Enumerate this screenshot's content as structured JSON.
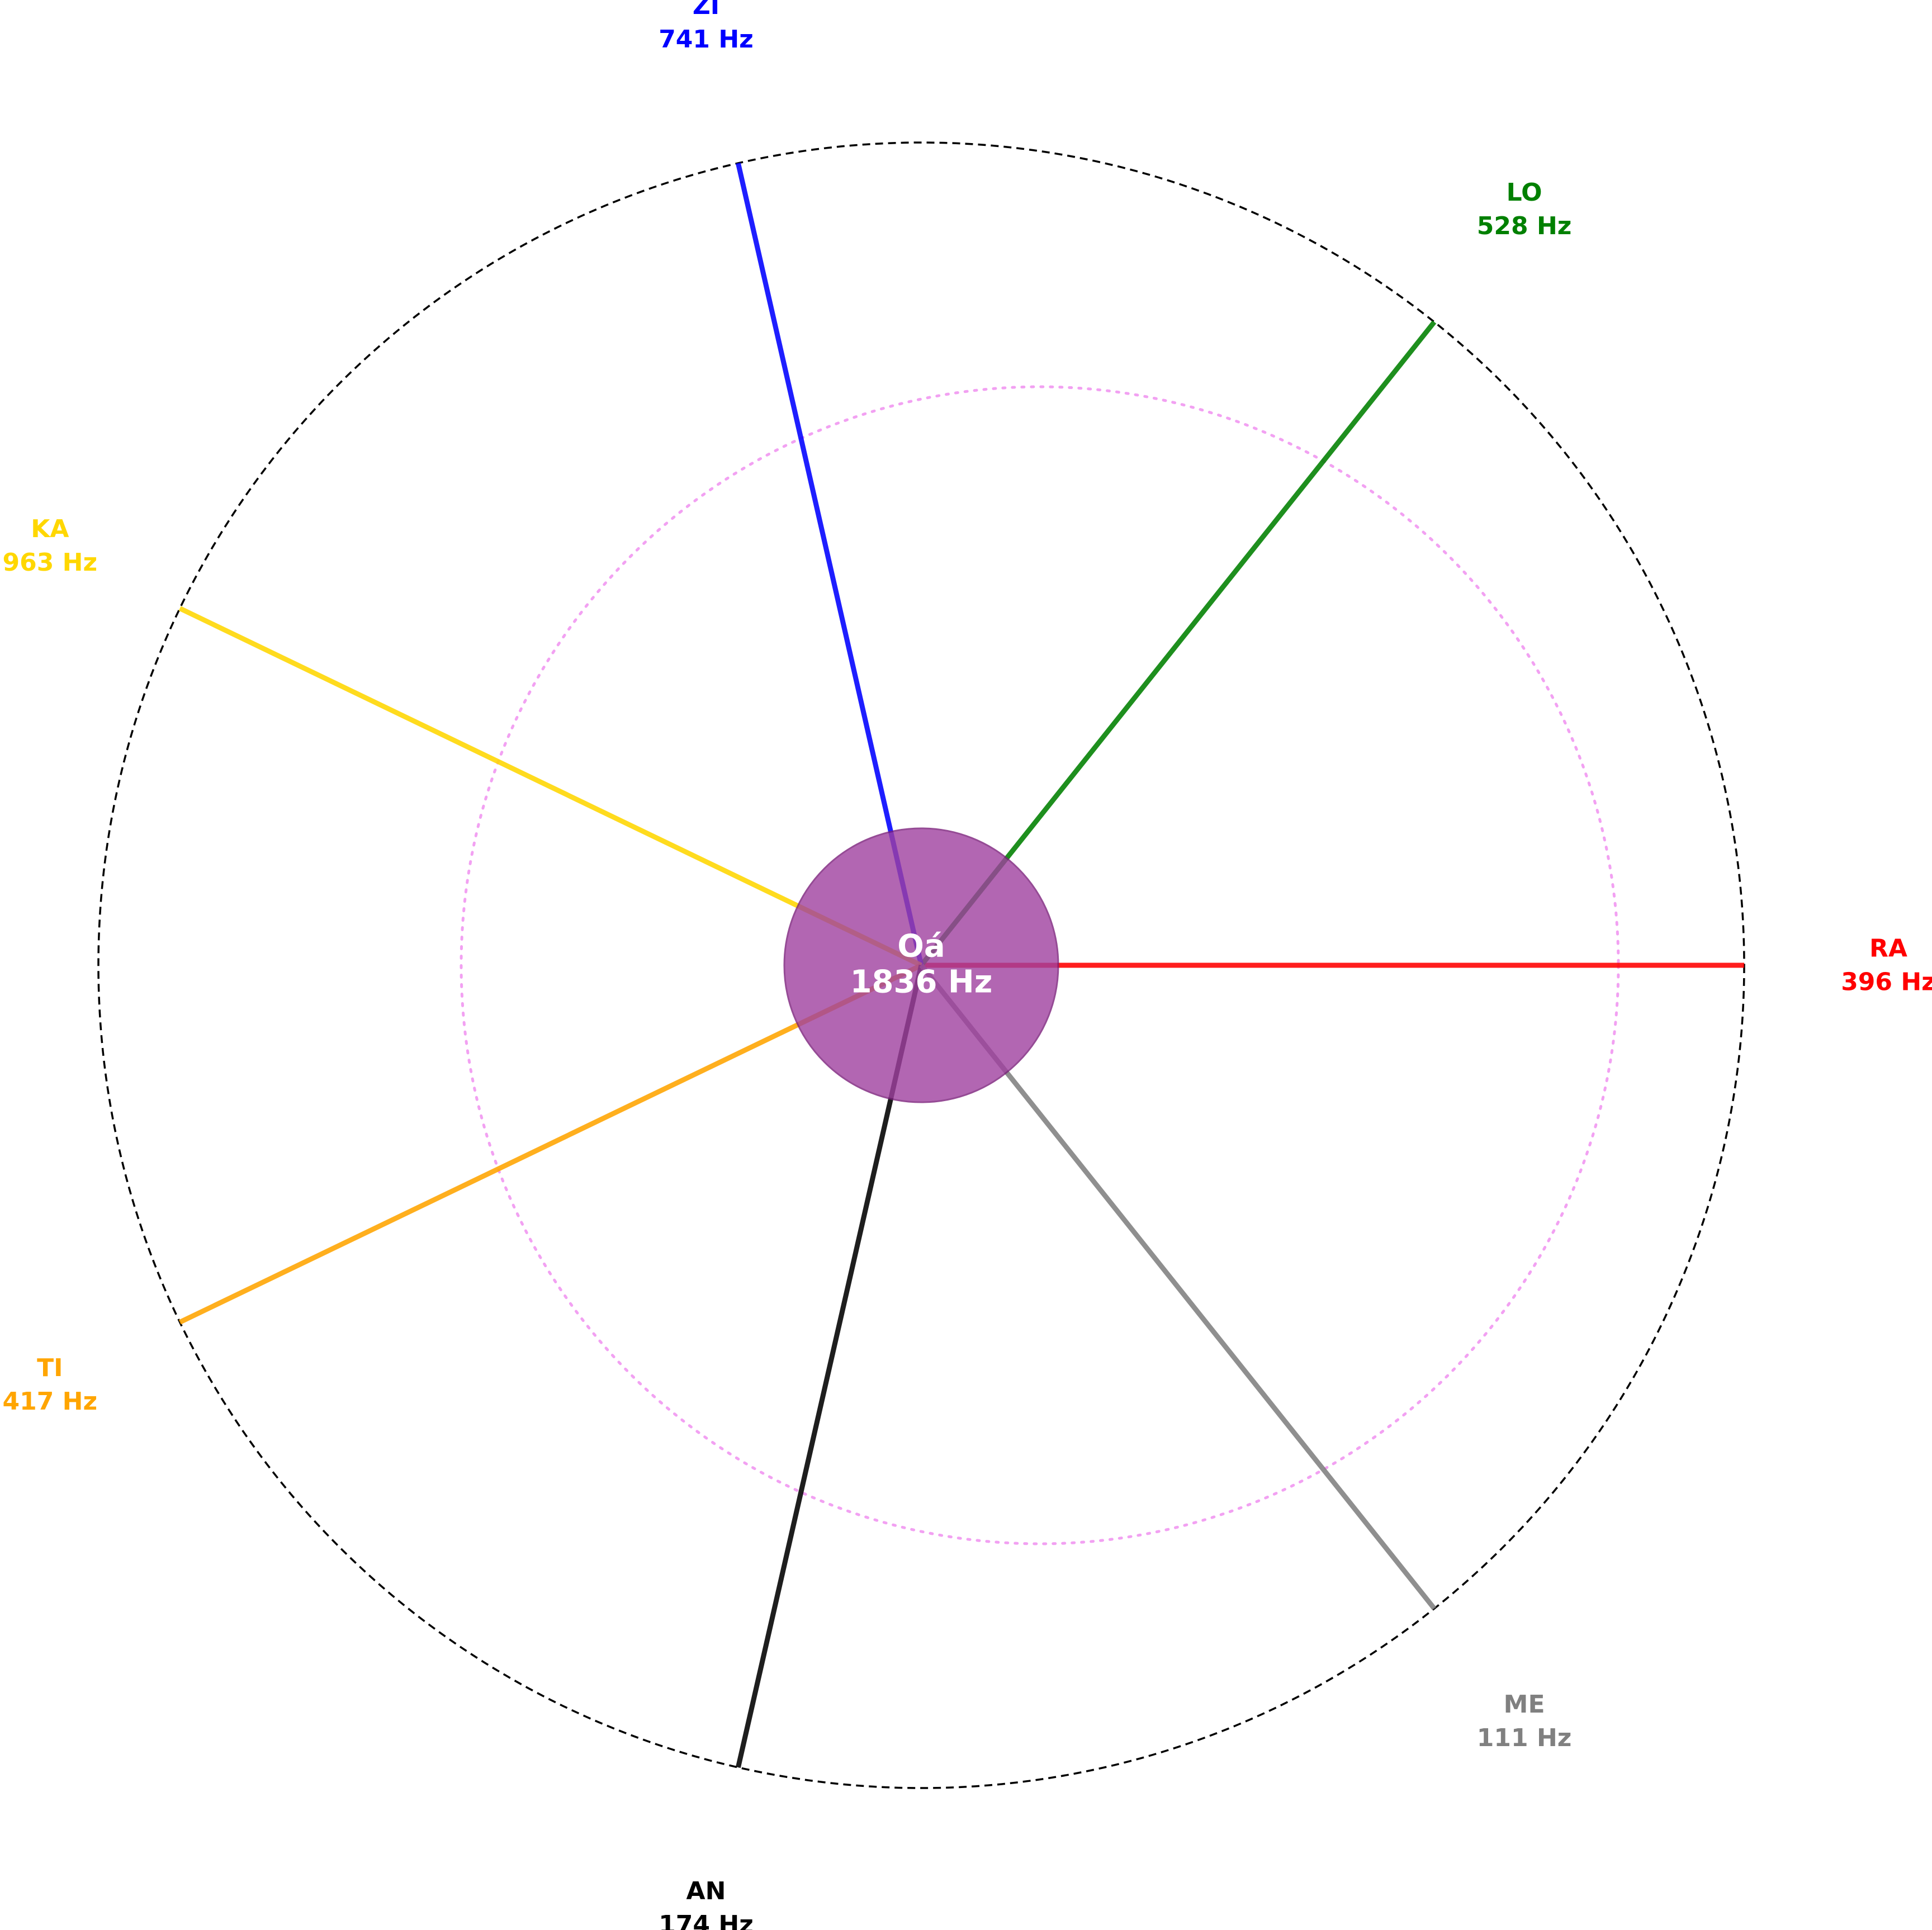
{
  "center": {
    "name": "Oá",
    "freq": "1836 Hz",
    "fill": "#a040a0",
    "stroke": "#7b1f7b"
  },
  "outer_circle": {
    "color": "#000000",
    "style": "dashed"
  },
  "inner_circle": {
    "color": "#ee82ee",
    "style": "dotted"
  },
  "spokes": [
    {
      "id": "ra",
      "name": "RA",
      "freq": "396 Hz",
      "color": "#ff0000",
      "angle_deg": 0
    },
    {
      "id": "lo",
      "name": "LO",
      "freq": "528 Hz",
      "color": "#008000",
      "angle_deg": 51.43
    },
    {
      "id": "zi",
      "name": "ZI",
      "freq": "741 Hz",
      "color": "#0000ff",
      "angle_deg": 102.86
    },
    {
      "id": "ka",
      "name": "KA",
      "freq": "963 Hz",
      "color": "#ffd700",
      "angle_deg": 154.29
    },
    {
      "id": "ti",
      "name": "TI",
      "freq": "417 Hz",
      "color": "#ffa500",
      "angle_deg": 205.71
    },
    {
      "id": "an",
      "name": "AN",
      "freq": "174 Hz",
      "color": "#000000",
      "angle_deg": 257.14
    },
    {
      "id": "me",
      "name": "ME",
      "freq": "111 Hz",
      "color": "#808080",
      "angle_deg": 308.57
    }
  ]
}
